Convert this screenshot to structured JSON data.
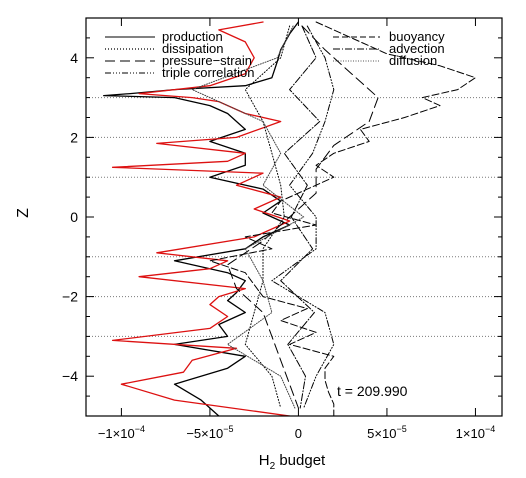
{
  "chart_data": {
    "type": "line",
    "xlabel": "H2 budget",
    "ylabel": "Z",
    "xlim": [
      -0.00012,
      0.000115
    ],
    "ylim": [
      -5,
      5
    ],
    "x_ticks": [
      {
        "value": -0.0001,
        "label": "−1×10",
        "exp": "−4"
      },
      {
        "value": -5e-05,
        "label": "−5×10",
        "exp": "−5"
      },
      {
        "value": 0,
        "label": "0",
        "exp": ""
      },
      {
        "value": 5e-05,
        "label": "5×10",
        "exp": "−5"
      },
      {
        "value": 0.0001,
        "label": "1×10",
        "exp": "−4"
      }
    ],
    "y_ticks": [
      {
        "value": -4,
        "label": "−4"
      },
      {
        "value": -2,
        "label": "−2"
      },
      {
        "value": 0,
        "label": "0"
      },
      {
        "value": 2,
        "label": "2"
      },
      {
        "value": 4,
        "label": "4"
      }
    ],
    "annotation": "t = 209.990",
    "reference_lines": [
      -3,
      -2,
      -1,
      1,
      2,
      3
    ],
    "legend": [
      {
        "name": "production",
        "style": "solid"
      },
      {
        "name": "dissipation",
        "style": "dotted"
      },
      {
        "name": "pressure−strain",
        "style": "longdash"
      },
      {
        "name": "triple correlation",
        "style": "dashdotdotdot"
      },
      {
        "name": "buoyancy",
        "style": "dashed"
      },
      {
        "name": "advection",
        "style": "dashdot"
      },
      {
        "name": "diffusion",
        "style": "dotted-fine"
      }
    ],
    "series": [
      {
        "name": "production",
        "color": "#000000",
        "y": [
          4.9,
          4.6,
          4.2,
          3.9,
          3.5,
          3.3,
          3.2,
          3.1,
          3.05,
          3.0,
          2.8,
          2.6,
          2.2,
          1.9,
          1.6,
          1.3,
          1.0,
          0.7,
          0.4,
          0.1,
          -0.2,
          -0.5,
          -0.8,
          -1.1,
          -1.4,
          -1.6,
          -1.9,
          -2.1,
          -2.4,
          -2.7,
          -3.0,
          -3.2,
          -3.5,
          -3.8,
          -4.2,
          -4.6,
          -5.0
        ],
        "x": [
          0,
          -5e-06,
          -1e-05,
          -1.2e-05,
          -1.5e-05,
          -3e-05,
          -7e-05,
          -9.5e-05,
          -0.00011,
          -7e-05,
          -5e-05,
          -4e-05,
          -3e-05,
          -5e-05,
          -3e-05,
          -3e-05,
          -5e-05,
          -2e-05,
          -1e-05,
          -2e-05,
          -5e-06,
          -2e-05,
          -3e-05,
          -7e-05,
          -4e-05,
          -3e-05,
          -3.5e-05,
          -4e-05,
          -3e-05,
          -4.5e-05,
          -4e-05,
          -7e-05,
          -3e-05,
          -4e-05,
          -7e-05,
          -5.5e-05,
          -4.5e-05
        ]
      },
      {
        "name": "production-red",
        "color": "#dd1111",
        "y": [
          4.9,
          4.7,
          4.4,
          4.0,
          3.6,
          3.3,
          3.1,
          3.0,
          2.9,
          2.6,
          2.4,
          2.0,
          1.85,
          1.6,
          1.4,
          1.25,
          1.1,
          0.8,
          0.5,
          0.2,
          -0.1,
          -0.5,
          -0.9,
          -1.1,
          -1.3,
          -1.5,
          -1.8,
          -2.0,
          -2.2,
          -2.5,
          -2.8,
          -3.1,
          -3.3,
          -3.6,
          -3.9,
          -4.2,
          -4.6,
          -5.0
        ],
        "x": [
          -2e-05,
          -4.5e-05,
          -3e-05,
          -2.5e-05,
          -3e-05,
          -5e-05,
          -9e-05,
          -6e-05,
          -4.5e-05,
          -3e-05,
          -1e-05,
          -3.5e-05,
          -8e-05,
          -3e-05,
          -4e-05,
          -0.000105,
          -2e-05,
          -3.5e-05,
          -1e-05,
          -2.5e-05,
          -5e-06,
          -2.5e-05,
          -8e-05,
          -4e-05,
          -5e-05,
          -9e-05,
          -3e-05,
          -4.5e-05,
          -5e-05,
          -4e-05,
          -5e-05,
          -0.000105,
          -3.5e-05,
          -6e-05,
          -6.5e-05,
          -0.0001,
          -7e-05,
          -5e-06
        ]
      },
      {
        "name": "buoyancy",
        "color": "#000000",
        "y": [
          4.9,
          4.5,
          4.1,
          3.8,
          3.5,
          3.2,
          3.0,
          2.8,
          2.5,
          2.2,
          1.9,
          1.6,
          1.3,
          1.0,
          0.7,
          0.4,
          0.1,
          -0.2,
          -0.5,
          -0.8,
          -1.1,
          -1.4,
          -1.7,
          -2.0,
          -2.3,
          -2.6,
          -2.9,
          -3.2,
          -3.5,
          -3.8,
          -4.1,
          -4.4,
          -4.7,
          -5.0
        ],
        "x": [
          1e-05,
          3e-05,
          5e-05,
          8e-05,
          0.0001,
          9e-05,
          7e-05,
          8e-05,
          6e-05,
          3.5e-05,
          4e-05,
          2e-05,
          1e-05,
          2e-05,
          5e-06,
          -1e-05,
          -1.5e-05,
          1e-05,
          -3e-05,
          -1.5e-05,
          -5e-05,
          -3e-05,
          -2.5e-05,
          -2e-05,
          5e-06,
          -1e-05,
          1e-05,
          -5e-06,
          2e-05,
          1.5e-05,
          1.5e-05,
          1.7e-05,
          2e-05,
          2e-05
        ]
      },
      {
        "name": "pressure−strain",
        "color": "#000000",
        "y": [
          4.8,
          4.2,
          3.6,
          3.0,
          2.4,
          1.8,
          1.2,
          0.6,
          0.0,
          -0.6,
          -1.2,
          -1.8,
          -2.4,
          -3.0,
          -3.6,
          -4.2,
          -4.8
        ],
        "x": [
          2e-06,
          1.5e-05,
          3e-05,
          4.5e-05,
          4e-05,
          2e-05,
          1e-05,
          1e-05,
          -5e-06,
          -2e-05,
          -4e-05,
          -3.5e-05,
          -2e-05,
          -1.5e-05,
          -1e-05,
          -5e-06,
          0.0
        ]
      },
      {
        "name": "dissipation",
        "color": "#000000",
        "y": [
          4.8,
          4.0,
          3.2,
          2.4,
          1.6,
          0.8,
          0.0,
          -0.8,
          -1.6,
          -2.4,
          -3.2,
          -4.0,
          -4.8
        ],
        "x": [
          -5e-06,
          -1e-05,
          -3e-05,
          -2e-05,
          -1.5e-05,
          -1e-05,
          -8e-06,
          -2e-05,
          -2e-05,
          -2.5e-05,
          -3e-05,
          -1.5e-05,
          -1e-05
        ]
      },
      {
        "name": "triple correlation",
        "color": "#000000",
        "y": [
          4.8,
          4.0,
          3.2,
          2.4,
          1.6,
          0.8,
          0.0,
          -0.8,
          -1.6,
          -2.4,
          -3.2,
          -4.0,
          -4.8
        ],
        "x": [
          5e-06,
          1.5e-05,
          2e-05,
          1.5e-05,
          8e-06,
          -5e-06,
          1e-05,
          1e-05,
          -1.5e-05,
          1.5e-05,
          2e-05,
          1e-05,
          3e-06
        ]
      },
      {
        "name": "advection",
        "color": "#000000",
        "y": [
          4.8,
          4.0,
          3.2,
          2.4,
          1.6,
          0.8,
          0.0,
          -0.8,
          -1.6,
          -2.4,
          -3.2,
          -4.0,
          -4.8
        ],
        "x": [
          2e-06,
          1e-05,
          -5e-06,
          1.2e-05,
          -8e-06,
          5e-06,
          -4e-06,
          8e-06,
          -1e-05,
          9e-06,
          -6e-06,
          4e-06,
          1e-06
        ]
      },
      {
        "name": "diffusion",
        "color": "#444444",
        "y": [
          4.8,
          4.0,
          3.2,
          2.4,
          1.6,
          0.8,
          0.0,
          -0.8,
          -1.6,
          -2.4,
          -3.2,
          -4.0,
          -4.8
        ],
        "x": [
          -3e-06,
          -1.2e-05,
          -6e-05,
          -2e-05,
          -1e-05,
          -2e-05,
          3e-06,
          -3e-05,
          -2e-05,
          -1.5e-05,
          -4e-05,
          -1e-05,
          -2e-06
        ]
      }
    ]
  }
}
